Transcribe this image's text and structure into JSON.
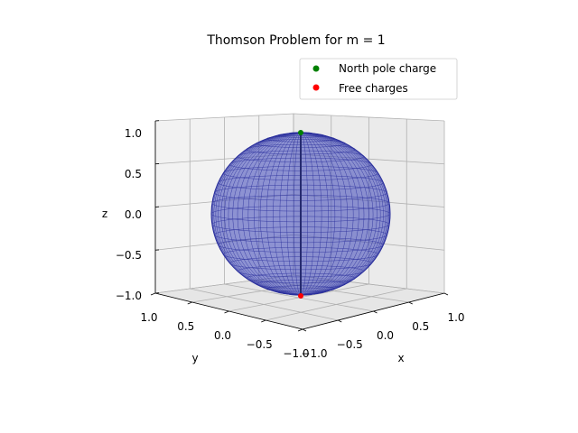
{
  "chart_data": {
    "type": "scatter3d",
    "title": "Thomson Problem for m = 1",
    "xlabel": "x",
    "ylabel": "y",
    "zlabel": "z",
    "xlim": [
      -1,
      1
    ],
    "ylim": [
      -1,
      1
    ],
    "zlim": [
      -1,
      1
    ],
    "xticks": [
      "−1.0",
      "−0.5",
      "0.0",
      "0.5",
      "1.0"
    ],
    "yticks": [
      "1.0",
      "0.5",
      "0.0",
      "−0.5",
      "−1.0"
    ],
    "zticks": [
      "1.0",
      "0.5",
      "0.0",
      "−0.5",
      "−1.0"
    ],
    "grid": true,
    "legend_position": "top-right",
    "surface": {
      "kind": "unit-sphere-wireframe",
      "color": "#3b44b8"
    },
    "series": [
      {
        "name": "North pole charge",
        "color": "#008000",
        "points": [
          [
            0,
            0,
            1
          ]
        ]
      },
      {
        "name": "Free charges",
        "color": "#ff0000",
        "points": [
          [
            0,
            0,
            -1
          ]
        ]
      }
    ]
  }
}
